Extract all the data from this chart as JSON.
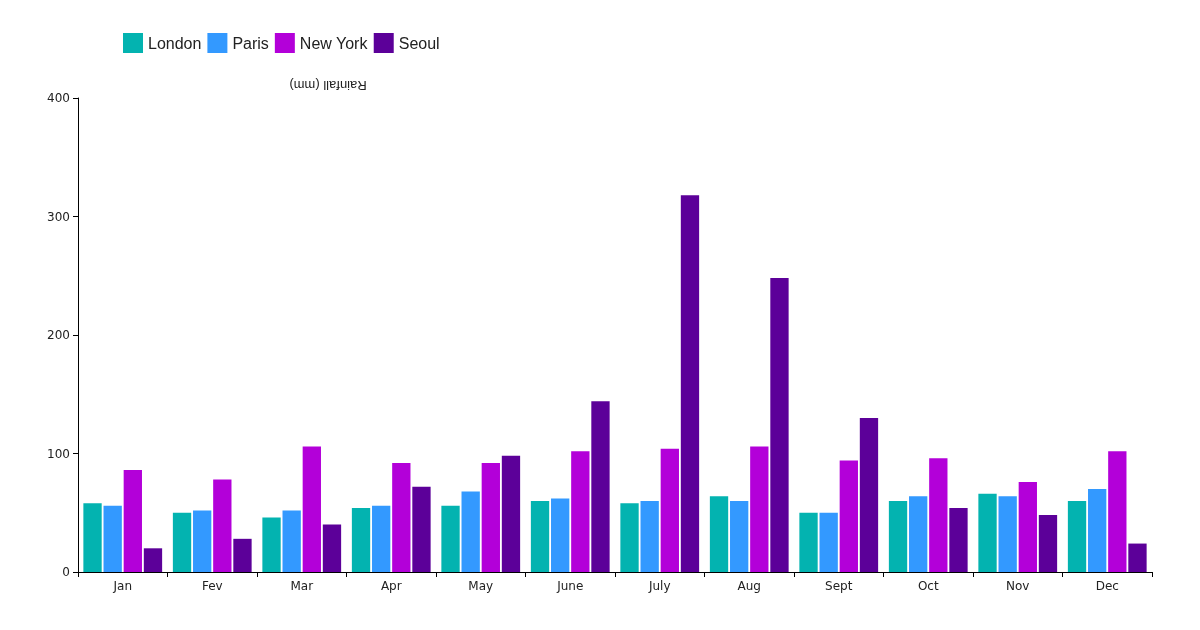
{
  "chart_data": {
    "type": "bar",
    "ylabel": "Rainfall (mm)",
    "categories": [
      "Jan",
      "Fev",
      "Mar",
      "Apr",
      "May",
      "June",
      "July",
      "Aug",
      "Sept",
      "Oct",
      "Nov",
      "Dec"
    ],
    "series": [
      {
        "name": "London",
        "color": "#03b3b0",
        "values": [
          58,
          50,
          46,
          54,
          56,
          60,
          58,
          64,
          50,
          60,
          66,
          60
        ]
      },
      {
        "name": "Paris",
        "color": "#3399ff",
        "values": [
          56,
          52,
          52,
          56,
          68,
          62,
          60,
          60,
          50,
          64,
          64,
          70
        ]
      },
      {
        "name": "New York",
        "color": "#b300d9",
        "values": [
          86,
          78,
          106,
          92,
          92,
          102,
          104,
          106,
          94,
          96,
          76,
          102
        ]
      },
      {
        "name": "Seoul",
        "color": "#5c0099",
        "values": [
          20,
          28,
          40,
          72,
          98,
          144,
          318,
          248,
          130,
          54,
          48,
          24
        ]
      }
    ],
    "ylim": [
      0,
      400
    ],
    "yticks": [
      0,
      100,
      200,
      300,
      400
    ],
    "grid": false,
    "legend": "top left"
  }
}
